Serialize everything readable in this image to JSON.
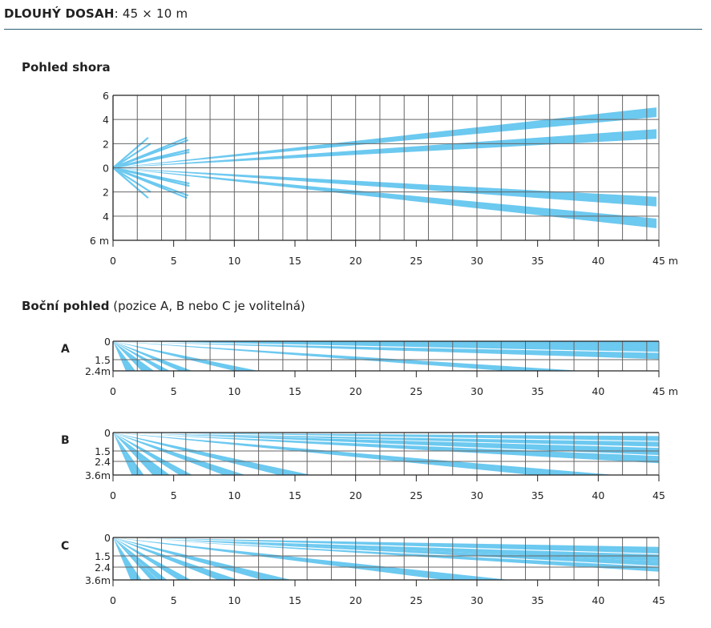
{
  "header": {
    "title_bold": "DLOUHÝ DOSAH",
    "title_rest": ": 45 × 10 m"
  },
  "top_view": {
    "title": "Pohled shora"
  },
  "side_view": {
    "title_bold": "Boční pohled",
    "title_rest": " (pozice A, B nebo C je volitelná)"
  },
  "colors": {
    "beam": "#6cc9f0",
    "grid": "#666666",
    "rule": "#2a5f73",
    "text": "#222222"
  },
  "chart_data": [
    {
      "type": "diagram",
      "name": "top-view",
      "title": "Pohled shora",
      "xlabel": "m",
      "x_ticks": [
        "0",
        "5",
        "10",
        "15",
        "20",
        "25",
        "30",
        "35",
        "40",
        "45 m"
      ],
      "y_ticks": [
        "6",
        "4",
        "2",
        "0",
        "2",
        "4",
        "6 m"
      ],
      "xlim": [
        0,
        45
      ],
      "ylim": [
        -6,
        6
      ],
      "grid_step_x": 2,
      "grid_step_y": 2,
      "short_beams": [
        {
          "end_x": 2.9,
          "end_y": 2.5
        },
        {
          "end_x": 3.1,
          "end_y": 2.0
        },
        {
          "end_x": 2.9,
          "end_y": -2.5
        },
        {
          "end_x": 3.1,
          "end_y": -2.0
        },
        {
          "end_x": 6.1,
          "end_y": 2.5
        },
        {
          "end_x": 6.2,
          "end_y": 2.3
        },
        {
          "end_x": 6.3,
          "end_y": 1.5
        },
        {
          "end_x": 6.3,
          "end_y": 1.3
        },
        {
          "end_x": 6.1,
          "end_y": -2.5
        },
        {
          "end_x": 6.2,
          "end_y": -2.3
        },
        {
          "end_x": 6.3,
          "end_y": -1.5
        },
        {
          "end_x": 6.3,
          "end_y": -1.3
        }
      ],
      "long_beams": [
        {
          "end_x": 44.8,
          "end_y_top": 5.0,
          "end_y_bottom": 4.2
        },
        {
          "end_x": 44.8,
          "end_y_top": 3.2,
          "end_y_bottom": 2.4
        },
        {
          "end_x": 44.8,
          "end_y_top": -2.4,
          "end_y_bottom": -3.2
        },
        {
          "end_x": 44.8,
          "end_y_top": -4.2,
          "end_y_bottom": -5.0
        }
      ]
    },
    {
      "type": "diagram",
      "name": "side-view-A",
      "row_label": "A",
      "mount_height_m": 2.4,
      "y_ticks": [
        "0",
        "1.5",
        "2.4m"
      ],
      "x_ticks": [
        "0",
        "5",
        "10",
        "15",
        "20",
        "25",
        "30",
        "35",
        "40",
        "45 m"
      ],
      "xlim": [
        0,
        45
      ],
      "beam_floor_hits_m": [
        1.3,
        1.6,
        2.6,
        3.1,
        4.3,
        6.0,
        11.0,
        35.5
      ],
      "far_beams": [
        {
          "y_top_at_45": 0.0,
          "y_bottom_at_45": 1.3
        },
        {
          "y_top_at_45": 0.35,
          "y_bottom_at_45": 1.45
        }
      ]
    },
    {
      "type": "diagram",
      "name": "side-view-B",
      "row_label": "B",
      "mount_height_m": 3.6,
      "y_ticks": [
        "0",
        "1.5",
        "2.4",
        "3.6m"
      ],
      "x_ticks": [
        "0",
        "5",
        "10",
        "15",
        "20",
        "25",
        "30",
        "35",
        "40",
        "45"
      ],
      "xlim": [
        0,
        45
      ],
      "beam_floor_hits_m": [
        1.8,
        2.3,
        3.6,
        4.3,
        6.0,
        10.0,
        15.0,
        38.0
      ],
      "far_beams": [
        {
          "y_top_at_45": 0.3,
          "y_bottom_at_45": 1.2
        },
        {
          "y_top_at_45": 1.3,
          "y_bottom_at_45": 2.6
        }
      ]
    },
    {
      "type": "diagram",
      "name": "side-view-C",
      "row_label": "C",
      "mount_height_m": 3.6,
      "y_ticks": [
        "0",
        "1.5",
        "2.4",
        "3.6m"
      ],
      "x_ticks": [
        "0",
        "5",
        "10",
        "15",
        "20",
        "25",
        "30",
        "35",
        "40",
        "45"
      ],
      "xlim": [
        0,
        45
      ],
      "beam_floor_hits_m": [
        1.7,
        2.1,
        3.4,
        4.1,
        5.9,
        9.5,
        13.5,
        30.0
      ],
      "far_beams": [
        {
          "y_top_at_45": 0.8,
          "y_bottom_at_45": 2.0
        },
        {
          "y_top_at_45": 2.0,
          "y_bottom_at_45": 2.9
        }
      ]
    }
  ]
}
